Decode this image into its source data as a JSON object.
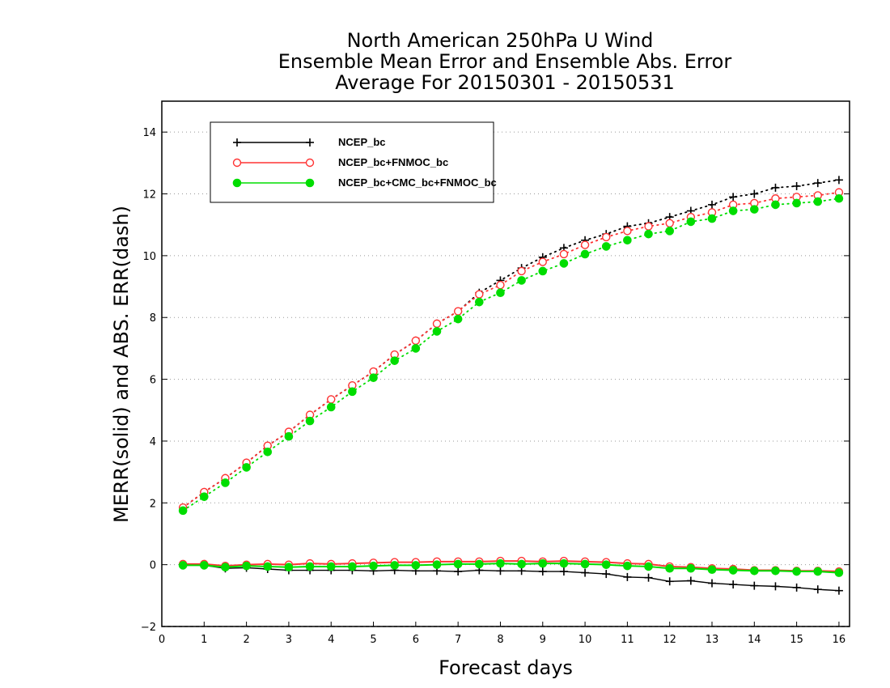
{
  "chart_data": {
    "type": "line",
    "title": [
      "North American 250hPa U Wind",
      "Ensemble Mean Error and Ensemble Abs. Error",
      "Average For 20150301 - 20150531"
    ],
    "xlabel": "Forecast days",
    "ylabel": "MERR(solid) and ABS. ERR(dash)",
    "xlim": [
      0,
      16.25
    ],
    "ylim": [
      -2,
      15
    ],
    "xticks": [
      0,
      1,
      2,
      3,
      4,
      5,
      6,
      7,
      8,
      9,
      10,
      11,
      12,
      13,
      14,
      15,
      16
    ],
    "yticks": [
      -2,
      0,
      2,
      4,
      6,
      8,
      10,
      12,
      14
    ],
    "grid": "dotted horizontal",
    "legend_position": "top-left",
    "x": [
      0.5,
      1,
      1.5,
      2,
      2.5,
      3,
      3.5,
      4,
      4.5,
      5,
      5.5,
      6,
      6.5,
      7,
      7.5,
      8,
      8.5,
      9,
      9.5,
      10,
      10.5,
      11,
      11.5,
      12,
      12.5,
      13,
      13.5,
      14,
      14.5,
      15,
      15.5,
      16
    ],
    "series": [
      {
        "name": "NCEP_bc",
        "color": "#000000",
        "marker": "plus",
        "merr": [
          0.0,
          -0.02,
          -0.12,
          -0.1,
          -0.14,
          -0.18,
          -0.18,
          -0.18,
          -0.18,
          -0.2,
          -0.18,
          -0.2,
          -0.2,
          -0.22,
          -0.18,
          -0.2,
          -0.2,
          -0.22,
          -0.22,
          -0.26,
          -0.3,
          -0.4,
          -0.42,
          -0.54,
          -0.52,
          -0.6,
          -0.64,
          -0.68,
          -0.7,
          -0.74,
          -0.8,
          -0.84
        ],
        "abs_err": [
          1.85,
          2.35,
          2.8,
          3.3,
          3.85,
          4.3,
          4.85,
          5.35,
          5.8,
          6.25,
          6.8,
          7.25,
          7.8,
          8.2,
          8.8,
          9.2,
          9.6,
          9.95,
          10.25,
          10.5,
          10.7,
          10.95,
          11.05,
          11.25,
          11.45,
          11.65,
          11.9,
          12.0,
          12.2,
          12.25,
          12.35,
          12.45
        ]
      },
      {
        "name": "NCEP_bc+FNMOC_bc",
        "color": "#ff3333",
        "marker": "open-circle",
        "merr": [
          0.02,
          0.02,
          -0.04,
          0.0,
          0.02,
          0.0,
          0.04,
          0.02,
          0.04,
          0.06,
          0.08,
          0.08,
          0.1,
          0.1,
          0.1,
          0.12,
          0.12,
          0.1,
          0.12,
          0.1,
          0.08,
          0.04,
          0.02,
          -0.06,
          -0.08,
          -0.12,
          -0.14,
          -0.18,
          -0.18,
          -0.2,
          -0.2,
          -0.22
        ],
        "abs_err": [
          1.85,
          2.35,
          2.8,
          3.3,
          3.85,
          4.3,
          4.85,
          5.35,
          5.8,
          6.25,
          6.8,
          7.25,
          7.8,
          8.2,
          8.75,
          9.05,
          9.5,
          9.8,
          10.05,
          10.35,
          10.6,
          10.8,
          10.95,
          11.05,
          11.25,
          11.4,
          11.65,
          11.7,
          11.85,
          11.9,
          11.95,
          12.05
        ]
      },
      {
        "name": "NCEP_bc+CMC_bc+FNMOC_bc",
        "color": "#00dd00",
        "marker": "filled-circle",
        "merr": [
          -0.02,
          -0.02,
          -0.08,
          -0.04,
          -0.06,
          -0.08,
          -0.06,
          -0.06,
          -0.06,
          -0.04,
          -0.02,
          -0.02,
          0.0,
          0.02,
          0.02,
          0.04,
          0.02,
          0.04,
          0.04,
          0.02,
          0.0,
          -0.04,
          -0.06,
          -0.12,
          -0.12,
          -0.16,
          -0.18,
          -0.2,
          -0.2,
          -0.22,
          -0.22,
          -0.26
        ],
        "abs_err": [
          1.75,
          2.2,
          2.65,
          3.15,
          3.65,
          4.15,
          4.65,
          5.1,
          5.6,
          6.05,
          6.6,
          7.0,
          7.55,
          7.95,
          8.5,
          8.8,
          9.2,
          9.5,
          9.75,
          10.05,
          10.3,
          10.5,
          10.7,
          10.8,
          11.1,
          11.2,
          11.45,
          11.5,
          11.65,
          11.7,
          11.75,
          11.85
        ]
      }
    ]
  }
}
